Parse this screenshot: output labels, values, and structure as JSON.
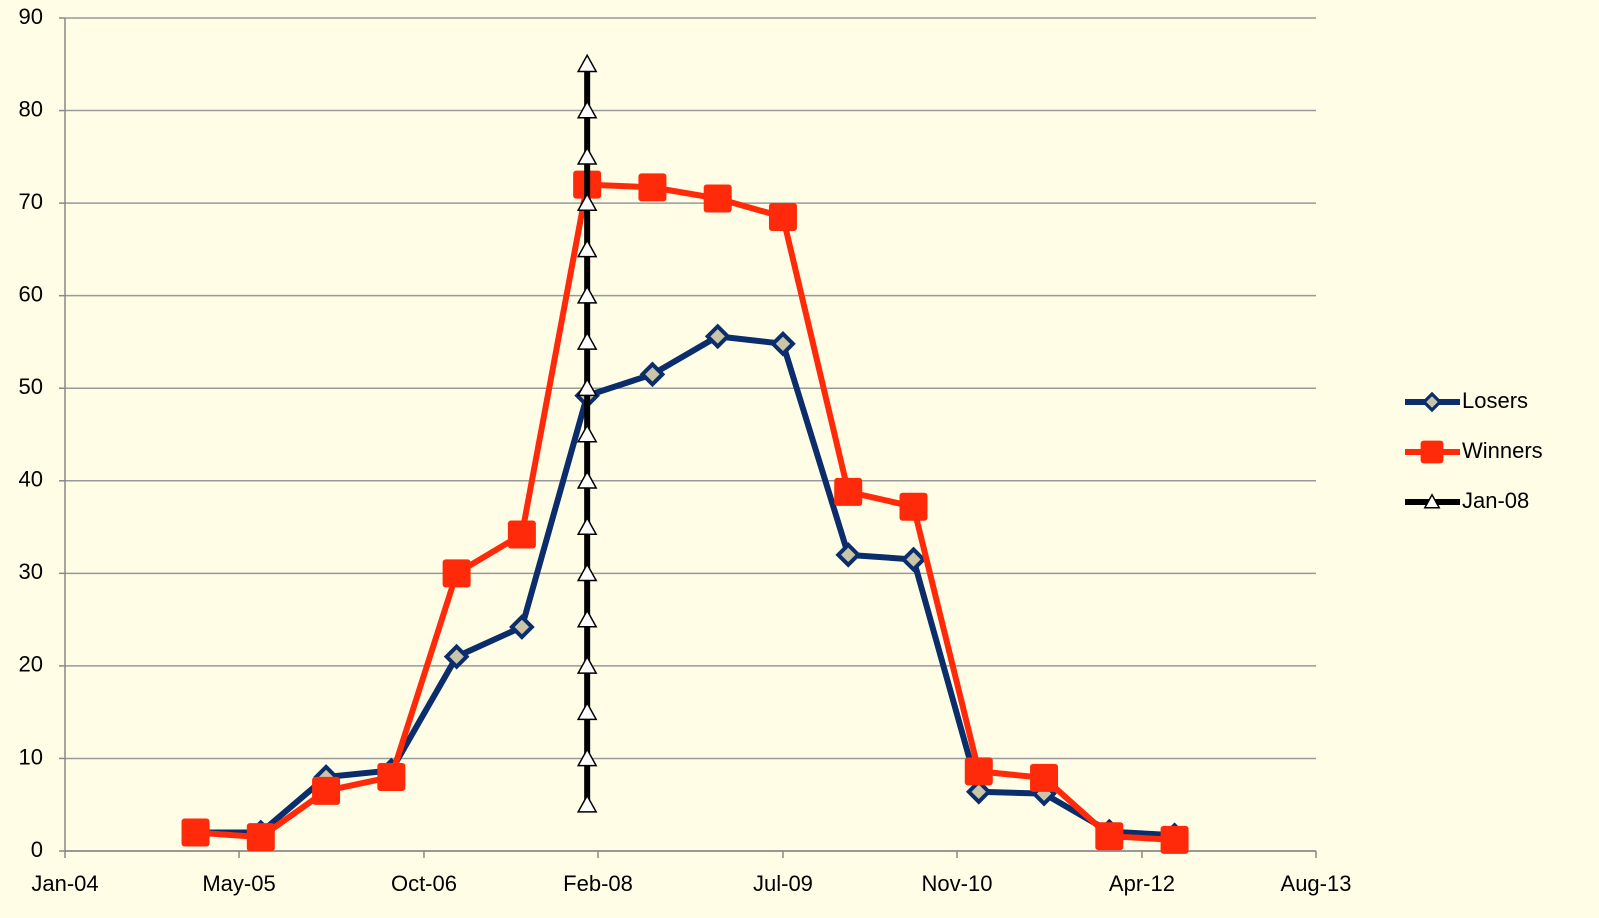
{
  "chart_data": {
    "type": "line",
    "x": [
      "2005-01",
      "2005-07",
      "2006-01",
      "2006-07",
      "2007-01",
      "2007-07",
      "2008-01",
      "2008-07",
      "2009-01",
      "2009-07",
      "2010-01",
      "2010-07",
      "2011-01",
      "2011-07",
      "2012-01",
      "2012-07"
    ],
    "series": [
      {
        "name": "Losers",
        "color": "#0b2d6b",
        "marker": "diamond",
        "values": [
          2.0,
          2.0,
          8.0,
          8.7,
          21,
          24.2,
          49.2,
          51.5,
          55.6,
          54.8,
          32,
          31.5,
          6.4,
          6.2,
          2.1,
          1.7
        ]
      },
      {
        "name": "Winners",
        "color": "#ff2a0a",
        "marker": "square",
        "values": [
          2.0,
          1.5,
          6.5,
          8.0,
          30,
          34.2,
          72,
          71.7,
          70.5,
          68.5,
          38.8,
          37.2,
          8.6,
          7.9,
          1.6,
          1.2
        ]
      },
      {
        "name": "Jan-08",
        "color": "#000000",
        "marker": "triangle",
        "x": [
          "2008-01",
          "2008-01",
          "2008-01",
          "2008-01",
          "2008-01",
          "2008-01",
          "2008-01",
          "2008-01",
          "2008-01",
          "2008-01",
          "2008-01",
          "2008-01",
          "2008-01",
          "2008-01",
          "2008-01",
          "2008-01",
          "2008-01"
        ],
        "values": [
          5,
          10,
          15,
          20,
          25,
          30,
          35,
          40,
          45,
          50,
          55,
          60,
          65,
          70,
          75,
          80,
          85
        ]
      }
    ],
    "xlim": [
      "2004-01",
      "2013-08"
    ],
    "xticks": [
      {
        "value": "2004-01",
        "label": "Jan-04"
      },
      {
        "value": "2005-05",
        "label": "May-05"
      },
      {
        "value": "2006-10",
        "label": "Oct-06"
      },
      {
        "value": "2008-02",
        "label": "Feb-08"
      },
      {
        "value": "2009-07",
        "label": "Jul-09"
      },
      {
        "value": "2010-11",
        "label": "Nov-10"
      },
      {
        "value": "2012-04",
        "label": "Apr-12"
      },
      {
        "value": "2013-08",
        "label": "Aug-13"
      }
    ],
    "ylim": [
      0,
      90
    ],
    "yticks": [
      0,
      10,
      20,
      30,
      40,
      50,
      60,
      70,
      80,
      90
    ],
    "grid": true,
    "legend": "right"
  }
}
